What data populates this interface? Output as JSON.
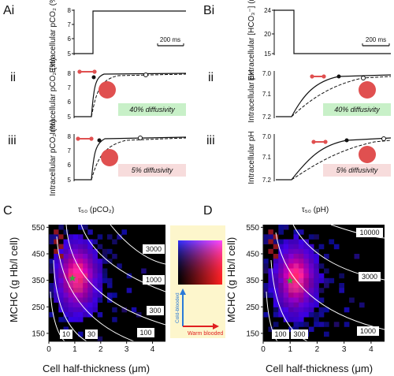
{
  "panel_labels": {
    "ai": "Ai",
    "ii_left": "ii",
    "iii_left": "iii",
    "bi": "Bi",
    "ii_right": "ii",
    "iii_right": "iii",
    "c": "C",
    "d": "D"
  },
  "panels": {
    "ai": {
      "ylabel": "Extracellular pCO₂ (%)",
      "yticks": [
        "8",
        "7",
        "6",
        "5"
      ],
      "scalebar": "200 ms"
    },
    "aii": {
      "ylabel": "Intracellular pCO₂ (%)",
      "yticks": [
        "8",
        "7",
        "6",
        "5"
      ],
      "box": "40% diffusivity",
      "box_color": "#c8f0c8"
    },
    "aiii": {
      "ylabel": "Intracellular pCO₂ (%)",
      "yticks": [
        "8",
        "7",
        "6",
        "5"
      ],
      "box": "5% diffusivity",
      "box_color": "#f7dcdc"
    },
    "bi": {
      "ylabel": "Extracellular [HCO₃⁻] (mM)",
      "yticks": [
        "24",
        "20",
        "15"
      ],
      "scalebar": "200 ms"
    },
    "bii": {
      "ylabel": "Intracellular pH",
      "yticks": [
        "7.0",
        "7.1",
        "7.2"
      ],
      "box": "40% diffusivity",
      "box_color": "#c8f0c8"
    },
    "biii": {
      "ylabel": "Intracellular pH",
      "yticks": [
        "7.0",
        "7.1",
        "7.2"
      ],
      "box": "5% diffusivity",
      "box_color": "#f7dcdc"
    }
  },
  "cell_color": "#e05050",
  "chart_data": [
    {
      "type": "heatmap",
      "panel": "C",
      "title": "τ₅₀ (pCO₂)",
      "xlabel": "Cell half-thickness (μm)",
      "ylabel": "MCHC (g Hb/l cell)",
      "xticks": [
        "0",
        "1",
        "2",
        "3",
        "4"
      ],
      "yticks": [
        "550",
        "450",
        "350",
        "250",
        "150"
      ],
      "xlim": [
        0,
        4.5
      ],
      "ylim": [
        120,
        560
      ],
      "contour_labels": [
        "3000",
        "1000",
        "300",
        "100",
        "30",
        "10"
      ]
    },
    {
      "type": "heatmap",
      "panel": "D",
      "title": "τ₅₀ (pH)",
      "xlabel": "Cell half-thickness (μm)",
      "ylabel": "MCHC (g Hb/l cell)",
      "xticks": [
        "0",
        "1",
        "2",
        "3",
        "4"
      ],
      "yticks": [
        "550",
        "450",
        "350",
        "250",
        "150"
      ],
      "xlim": [
        0,
        4.5
      ],
      "ylim": [
        120,
        560
      ],
      "contour_labels": [
        "10000",
        "3000",
        "1000",
        "300",
        "100"
      ]
    }
  ],
  "legend": {
    "cold": "Cold-blooded",
    "warm": "Warm blooded"
  }
}
